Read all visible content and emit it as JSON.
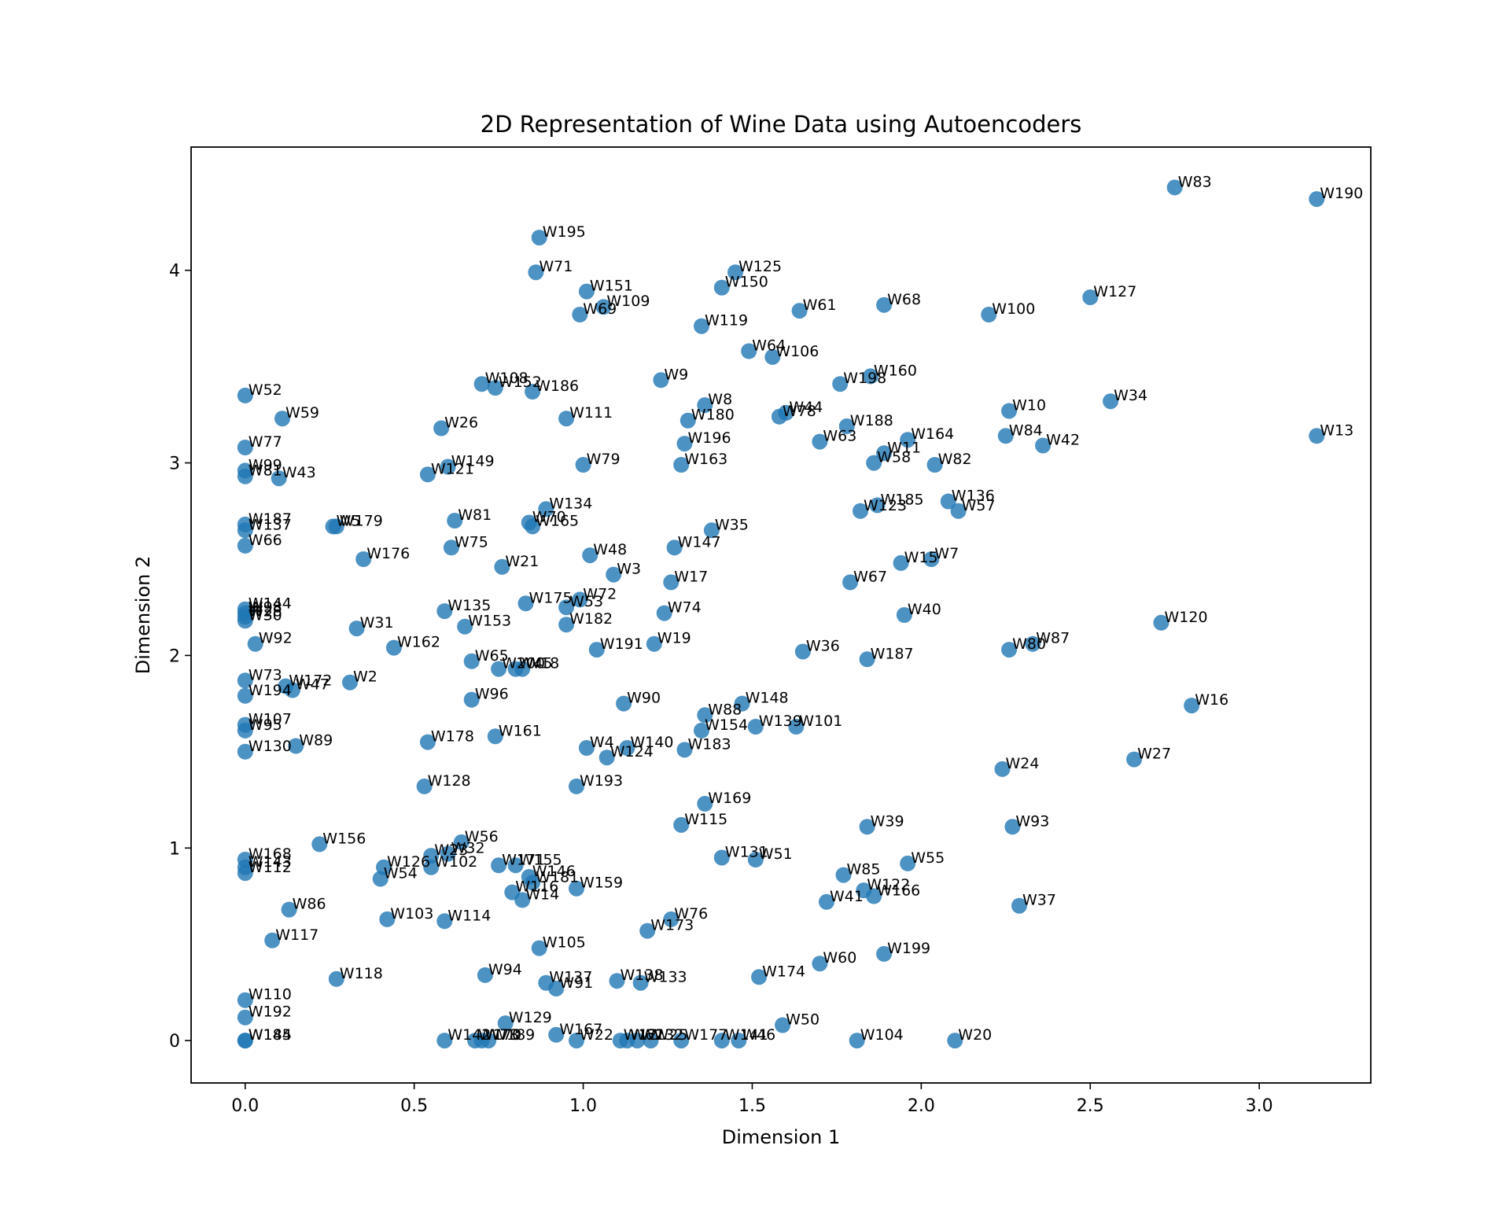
{
  "chart_data": {
    "type": "scatter",
    "title": "2D Representation of Wine Data using Autoencoders",
    "xlabel": "Dimension 1",
    "ylabel": "Dimension 2",
    "xlim": [
      -0.16,
      3.33
    ],
    "ylim": [
      -0.22,
      4.64
    ],
    "xticks": [
      0.0,
      0.5,
      1.0,
      1.5,
      2.0,
      2.5,
      3.0
    ],
    "yticks": [
      0,
      1,
      2,
      3,
      4
    ],
    "xtick_labels": [
      "0.0",
      "0.5",
      "1.0",
      "1.5",
      "2.0",
      "2.5",
      "3.0"
    ],
    "ytick_labels": [
      "0",
      "1",
      "2",
      "3",
      "4"
    ],
    "grid": false,
    "color": "#1f77b4",
    "points": [
      {
        "label": "W83",
        "x": 2.75,
        "y": 4.43
      },
      {
        "label": "W190",
        "x": 3.17,
        "y": 4.37
      },
      {
        "label": "W195",
        "x": 0.87,
        "y": 4.17
      },
      {
        "label": "W71",
        "x": 0.86,
        "y": 3.99
      },
      {
        "label": "W125",
        "x": 1.45,
        "y": 3.99
      },
      {
        "label": "W150",
        "x": 1.41,
        "y": 3.91
      },
      {
        "label": "W151",
        "x": 1.01,
        "y": 3.89
      },
      {
        "label": "W127",
        "x": 2.5,
        "y": 3.86
      },
      {
        "label": "W109",
        "x": 1.06,
        "y": 3.81
      },
      {
        "label": "W68",
        "x": 1.89,
        "y": 3.82
      },
      {
        "label": "W61",
        "x": 1.64,
        "y": 3.79
      },
      {
        "label": "W69",
        "x": 0.99,
        "y": 3.77
      },
      {
        "label": "W100",
        "x": 2.2,
        "y": 3.77
      },
      {
        "label": "W119",
        "x": 1.35,
        "y": 3.71
      },
      {
        "label": "W64",
        "x": 1.49,
        "y": 3.58
      },
      {
        "label": "W106",
        "x": 1.56,
        "y": 3.55
      },
      {
        "label": "W160",
        "x": 1.85,
        "y": 3.45
      },
      {
        "label": "W9",
        "x": 1.23,
        "y": 3.43
      },
      {
        "label": "W198",
        "x": 1.76,
        "y": 3.41
      },
      {
        "label": "W108",
        "x": 0.7,
        "y": 3.41
      },
      {
        "label": "W152",
        "x": 0.74,
        "y": 3.39
      },
      {
        "label": "W186",
        "x": 0.85,
        "y": 3.37
      },
      {
        "label": "W52",
        "x": 0.0,
        "y": 3.35
      },
      {
        "label": "W34",
        "x": 2.56,
        "y": 3.32
      },
      {
        "label": "W8",
        "x": 1.36,
        "y": 3.3
      },
      {
        "label": "W10",
        "x": 2.26,
        "y": 3.27
      },
      {
        "label": "W44",
        "x": 1.6,
        "y": 3.26
      },
      {
        "label": "W78",
        "x": 1.58,
        "y": 3.24
      },
      {
        "label": "W59",
        "x": 0.11,
        "y": 3.23
      },
      {
        "label": "W111",
        "x": 0.95,
        "y": 3.23
      },
      {
        "label": "W180",
        "x": 1.31,
        "y": 3.22
      },
      {
        "label": "W188",
        "x": 1.78,
        "y": 3.19
      },
      {
        "label": "W26",
        "x": 0.58,
        "y": 3.18
      },
      {
        "label": "W84",
        "x": 2.25,
        "y": 3.14
      },
      {
        "label": "W13",
        "x": 3.17,
        "y": 3.14
      },
      {
        "label": "W164",
        "x": 1.96,
        "y": 3.12
      },
      {
        "label": "W63",
        "x": 1.7,
        "y": 3.11
      },
      {
        "label": "W196",
        "x": 1.3,
        "y": 3.1
      },
      {
        "label": "W42",
        "x": 2.36,
        "y": 3.09
      },
      {
        "label": "W77",
        "x": 0.0,
        "y": 3.08
      },
      {
        "label": "W11",
        "x": 1.89,
        "y": 3.05
      },
      {
        "label": "W58",
        "x": 1.86,
        "y": 3.0
      },
      {
        "label": "W163",
        "x": 1.29,
        "y": 2.99
      },
      {
        "label": "W79",
        "x": 1.0,
        "y": 2.99
      },
      {
        "label": "W82",
        "x": 2.04,
        "y": 2.99
      },
      {
        "label": "W149",
        "x": 0.6,
        "y": 2.98
      },
      {
        "label": "W99",
        "x": 0.0,
        "y": 2.96
      },
      {
        "label": "W121",
        "x": 0.54,
        "y": 2.94
      },
      {
        "label": "W81",
        "x": 0.0,
        "y": 2.93
      },
      {
        "label": "W43",
        "x": 0.1,
        "y": 2.92
      },
      {
        "label": "W136",
        "x": 2.08,
        "y": 2.8
      },
      {
        "label": "W185",
        "x": 1.87,
        "y": 2.78
      },
      {
        "label": "W123",
        "x": 1.82,
        "y": 2.75
      },
      {
        "label": "W57",
        "x": 2.11,
        "y": 2.75
      },
      {
        "label": "W134",
        "x": 0.89,
        "y": 2.76
      },
      {
        "label": "W81",
        "x": 0.62,
        "y": 2.7
      },
      {
        "label": "W70",
        "x": 0.84,
        "y": 2.69
      },
      {
        "label": "W165",
        "x": 0.85,
        "y": 2.67
      },
      {
        "label": "W187",
        "x": 0.0,
        "y": 2.68
      },
      {
        "label": "W137",
        "x": 0.0,
        "y": 2.65
      },
      {
        "label": "W5",
        "x": 0.26,
        "y": 2.67
      },
      {
        "label": "W179",
        "x": 0.27,
        "y": 2.67
      },
      {
        "label": "W35",
        "x": 1.38,
        "y": 2.65
      },
      {
        "label": "W66",
        "x": 0.0,
        "y": 2.57
      },
      {
        "label": "W147",
        "x": 1.27,
        "y": 2.56
      },
      {
        "label": "W75",
        "x": 0.61,
        "y": 2.56
      },
      {
        "label": "W48",
        "x": 1.02,
        "y": 2.52
      },
      {
        "label": "W176",
        "x": 0.35,
        "y": 2.5
      },
      {
        "label": "W7",
        "x": 2.03,
        "y": 2.5
      },
      {
        "label": "W15",
        "x": 1.94,
        "y": 2.48
      },
      {
        "label": "W21",
        "x": 0.76,
        "y": 2.46
      },
      {
        "label": "W3",
        "x": 1.09,
        "y": 2.42
      },
      {
        "label": "W67",
        "x": 1.79,
        "y": 2.38
      },
      {
        "label": "W17",
        "x": 1.26,
        "y": 2.38
      },
      {
        "label": "W72",
        "x": 0.99,
        "y": 2.29
      },
      {
        "label": "W175",
        "x": 0.83,
        "y": 2.27
      },
      {
        "label": "W53",
        "x": 0.95,
        "y": 2.25
      },
      {
        "label": "W135",
        "x": 0.59,
        "y": 2.23
      },
      {
        "label": "W144",
        "x": 0.0,
        "y": 2.24
      },
      {
        "label": "W98",
        "x": 0.0,
        "y": 2.22
      },
      {
        "label": "W28",
        "x": 0.0,
        "y": 2.2
      },
      {
        "label": "W74",
        "x": 1.24,
        "y": 2.22
      },
      {
        "label": "W40",
        "x": 1.95,
        "y": 2.21
      },
      {
        "label": "W30",
        "x": 0.0,
        "y": 2.18
      },
      {
        "label": "W120",
        "x": 2.71,
        "y": 2.17
      },
      {
        "label": "W182",
        "x": 0.95,
        "y": 2.16
      },
      {
        "label": "W153",
        "x": 0.65,
        "y": 2.15
      },
      {
        "label": "W31",
        "x": 0.33,
        "y": 2.14
      },
      {
        "label": "W19",
        "x": 1.21,
        "y": 2.06
      },
      {
        "label": "W87",
        "x": 2.33,
        "y": 2.06
      },
      {
        "label": "W92",
        "x": 0.03,
        "y": 2.06
      },
      {
        "label": "W162",
        "x": 0.44,
        "y": 2.04
      },
      {
        "label": "W80",
        "x": 2.26,
        "y": 2.03
      },
      {
        "label": "W191",
        "x": 1.04,
        "y": 2.03
      },
      {
        "label": "W36",
        "x": 1.65,
        "y": 2.02
      },
      {
        "label": "W187",
        "x": 1.84,
        "y": 1.98
      },
      {
        "label": "W65",
        "x": 0.67,
        "y": 1.97
      },
      {
        "label": "W200",
        "x": 0.75,
        "y": 1.93
      },
      {
        "label": "W45",
        "x": 0.8,
        "y": 1.93
      },
      {
        "label": "W18",
        "x": 0.82,
        "y": 1.93
      },
      {
        "label": "W73",
        "x": 0.0,
        "y": 1.87
      },
      {
        "label": "W2",
        "x": 0.31,
        "y": 1.86
      },
      {
        "label": "W172",
        "x": 0.12,
        "y": 1.84
      },
      {
        "label": "W47",
        "x": 0.14,
        "y": 1.82
      },
      {
        "label": "W194",
        "x": 0.0,
        "y": 1.79
      },
      {
        "label": "W96",
        "x": 0.67,
        "y": 1.77
      },
      {
        "label": "W90",
        "x": 1.12,
        "y": 1.75
      },
      {
        "label": "W148",
        "x": 1.47,
        "y": 1.75
      },
      {
        "label": "W16",
        "x": 2.8,
        "y": 1.74
      },
      {
        "label": "W88",
        "x": 1.36,
        "y": 1.69
      },
      {
        "label": "W107",
        "x": 0.0,
        "y": 1.64
      },
      {
        "label": "W139",
        "x": 1.51,
        "y": 1.63
      },
      {
        "label": "W101",
        "x": 1.63,
        "y": 1.63
      },
      {
        "label": "W95",
        "x": 0.0,
        "y": 1.61
      },
      {
        "label": "W154",
        "x": 1.35,
        "y": 1.61
      },
      {
        "label": "W161",
        "x": 0.74,
        "y": 1.58
      },
      {
        "label": "W178",
        "x": 0.54,
        "y": 1.55
      },
      {
        "label": "W89",
        "x": 0.15,
        "y": 1.53
      },
      {
        "label": "W140",
        "x": 1.13,
        "y": 1.52
      },
      {
        "label": "W4",
        "x": 1.01,
        "y": 1.52
      },
      {
        "label": "W183",
        "x": 1.3,
        "y": 1.51
      },
      {
        "label": "W130",
        "x": 0.0,
        "y": 1.5
      },
      {
        "label": "W124",
        "x": 1.07,
        "y": 1.47
      },
      {
        "label": "W27",
        "x": 2.63,
        "y": 1.46
      },
      {
        "label": "W24",
        "x": 2.24,
        "y": 1.41
      },
      {
        "label": "W128",
        "x": 0.53,
        "y": 1.32
      },
      {
        "label": "W193",
        "x": 0.98,
        "y": 1.32
      },
      {
        "label": "W169",
        "x": 1.36,
        "y": 1.23
      },
      {
        "label": "W115",
        "x": 1.29,
        "y": 1.12
      },
      {
        "label": "W39",
        "x": 1.84,
        "y": 1.11
      },
      {
        "label": "W93",
        "x": 2.27,
        "y": 1.11
      },
      {
        "label": "W156",
        "x": 0.22,
        "y": 1.02
      },
      {
        "label": "W56",
        "x": 0.64,
        "y": 1.03
      },
      {
        "label": "W32",
        "x": 0.6,
        "y": 0.97
      },
      {
        "label": "W23",
        "x": 0.55,
        "y": 0.96
      },
      {
        "label": "W131",
        "x": 1.41,
        "y": 0.95
      },
      {
        "label": "W51",
        "x": 1.51,
        "y": 0.94
      },
      {
        "label": "W168",
        "x": 0.0,
        "y": 0.94
      },
      {
        "label": "W126",
        "x": 0.41,
        "y": 0.9
      },
      {
        "label": "W102",
        "x": 0.55,
        "y": 0.9
      },
      {
        "label": "W143",
        "x": 0.0,
        "y": 0.9
      },
      {
        "label": "W155",
        "x": 0.8,
        "y": 0.91
      },
      {
        "label": "W171",
        "x": 0.75,
        "y": 0.91
      },
      {
        "label": "W55",
        "x": 1.96,
        "y": 0.92
      },
      {
        "label": "W112",
        "x": 0.0,
        "y": 0.87
      },
      {
        "label": "W54",
        "x": 0.4,
        "y": 0.84
      },
      {
        "label": "W146",
        "x": 0.84,
        "y": 0.85
      },
      {
        "label": "W85",
        "x": 1.77,
        "y": 0.86
      },
      {
        "label": "W181",
        "x": 0.85,
        "y": 0.82
      },
      {
        "label": "W159",
        "x": 0.98,
        "y": 0.79
      },
      {
        "label": "W122",
        "x": 1.83,
        "y": 0.78
      },
      {
        "label": "W116",
        "x": 0.79,
        "y": 0.77
      },
      {
        "label": "W166",
        "x": 1.86,
        "y": 0.75
      },
      {
        "label": "W14",
        "x": 0.82,
        "y": 0.73
      },
      {
        "label": "W41",
        "x": 1.72,
        "y": 0.72
      },
      {
        "label": "W37",
        "x": 2.29,
        "y": 0.7
      },
      {
        "label": "W86",
        "x": 0.13,
        "y": 0.68
      },
      {
        "label": "W76",
        "x": 1.26,
        "y": 0.63
      },
      {
        "label": "W103",
        "x": 0.42,
        "y": 0.63
      },
      {
        "label": "W114",
        "x": 0.59,
        "y": 0.62
      },
      {
        "label": "W173",
        "x": 1.19,
        "y": 0.57
      },
      {
        "label": "W117",
        "x": 0.08,
        "y": 0.52
      },
      {
        "label": "W105",
        "x": 0.87,
        "y": 0.48
      },
      {
        "label": "W199",
        "x": 1.89,
        "y": 0.45
      },
      {
        "label": "W60",
        "x": 1.7,
        "y": 0.4
      },
      {
        "label": "W94",
        "x": 0.71,
        "y": 0.34
      },
      {
        "label": "W174",
        "x": 1.52,
        "y": 0.33
      },
      {
        "label": "W118",
        "x": 0.27,
        "y": 0.32
      },
      {
        "label": "W138",
        "x": 1.1,
        "y": 0.31
      },
      {
        "label": "W137",
        "x": 0.89,
        "y": 0.3
      },
      {
        "label": "W133",
        "x": 1.17,
        "y": 0.3
      },
      {
        "label": "W91",
        "x": 0.92,
        "y": 0.27
      },
      {
        "label": "W110",
        "x": 0.0,
        "y": 0.21
      },
      {
        "label": "W192",
        "x": 0.0,
        "y": 0.12
      },
      {
        "label": "W129",
        "x": 0.77,
        "y": 0.09
      },
      {
        "label": "W50",
        "x": 1.59,
        "y": 0.08
      },
      {
        "label": "W167",
        "x": 0.92,
        "y": 0.03
      },
      {
        "label": "W184",
        "x": 0.0,
        "y": 0.0
      },
      {
        "label": "W145",
        "x": 0.0,
        "y": 0.0
      },
      {
        "label": "W142",
        "x": 0.59,
        "y": 0.0
      },
      {
        "label": "W170",
        "x": 0.68,
        "y": 0.0
      },
      {
        "label": "W78",
        "x": 0.7,
        "y": 0.0
      },
      {
        "label": "W189",
        "x": 0.72,
        "y": 0.0
      },
      {
        "label": "W22",
        "x": 0.98,
        "y": 0.0
      },
      {
        "label": "W12",
        "x": 1.11,
        "y": 0.0
      },
      {
        "label": "W62",
        "x": 1.13,
        "y": 0.0
      },
      {
        "label": "W132",
        "x": 1.16,
        "y": 0.0
      },
      {
        "label": "W25",
        "x": 1.2,
        "y": 0.0
      },
      {
        "label": "W177",
        "x": 1.29,
        "y": 0.0
      },
      {
        "label": "W141",
        "x": 1.41,
        "y": 0.0
      },
      {
        "label": "W46",
        "x": 1.46,
        "y": 0.0
      },
      {
        "label": "W104",
        "x": 1.81,
        "y": 0.0
      },
      {
        "label": "W20",
        "x": 2.1,
        "y": 0.0
      }
    ]
  }
}
